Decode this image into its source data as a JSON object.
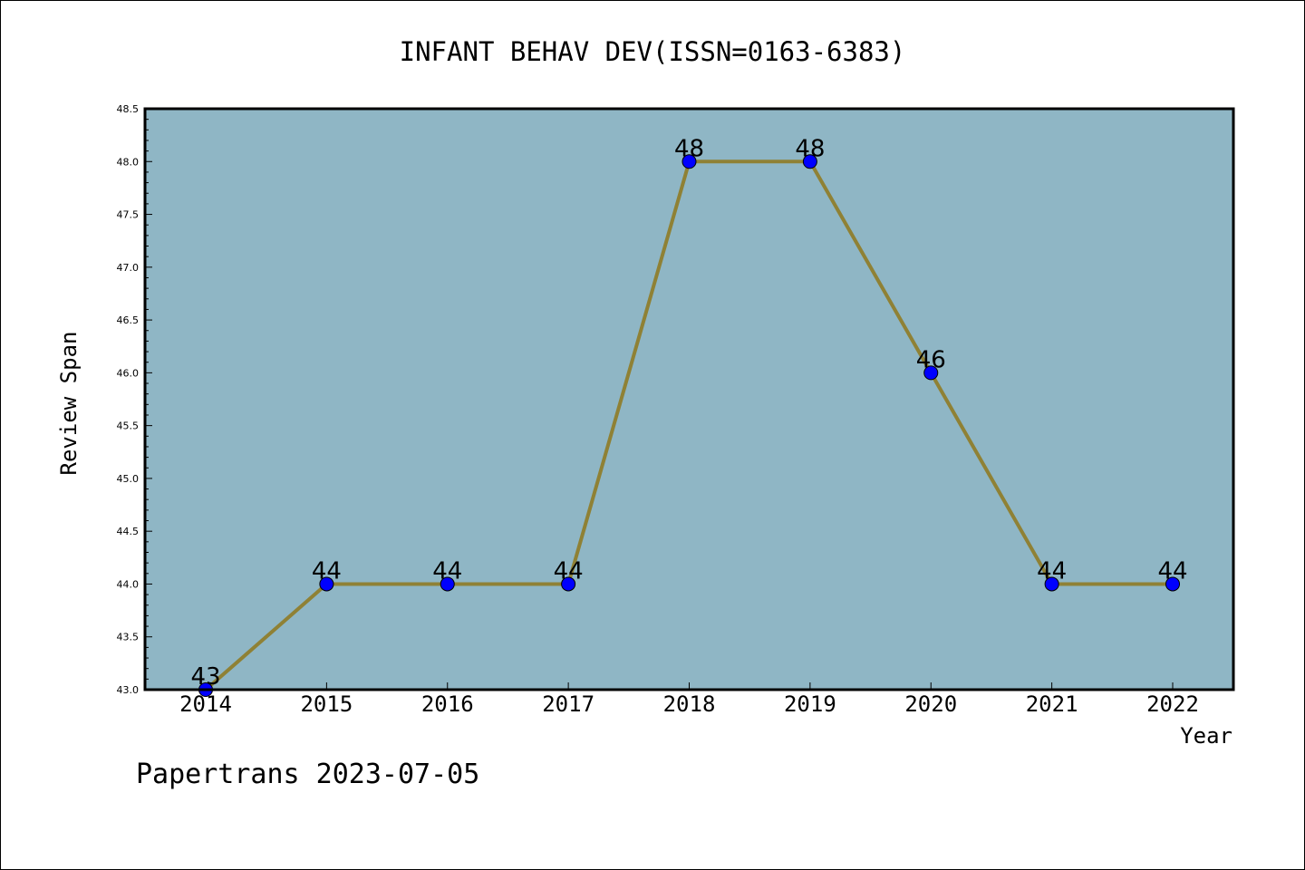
{
  "chart_data": {
    "type": "line",
    "title": "INFANT BEHAV DEV(ISSN=0163-6383)",
    "xlabel": "Year",
    "ylabel": "Review Span",
    "categories": [
      "2014",
      "2015",
      "2016",
      "2017",
      "2018",
      "2019",
      "2020",
      "2021",
      "2022"
    ],
    "values": [
      43,
      44,
      44,
      44,
      48,
      48,
      46,
      44,
      44
    ],
    "data_labels": [
      "43",
      "44",
      "44",
      "44",
      "48",
      "48",
      "46",
      "44",
      "44"
    ],
    "ylim": [
      43.0,
      48.5
    ],
    "yticks": [
      "43.0",
      "43.5",
      "44.0",
      "44.5",
      "45.0",
      "45.5",
      "46.0",
      "46.5",
      "47.0",
      "47.5",
      "48.0",
      "48.5"
    ],
    "grid": false,
    "colors": {
      "plot_background": "#8fb6c5",
      "line": "#8f8135",
      "marker": "#0000ff",
      "axis": "#000000"
    }
  },
  "footer": {
    "credit": "Papertrans 2023-07-05"
  }
}
